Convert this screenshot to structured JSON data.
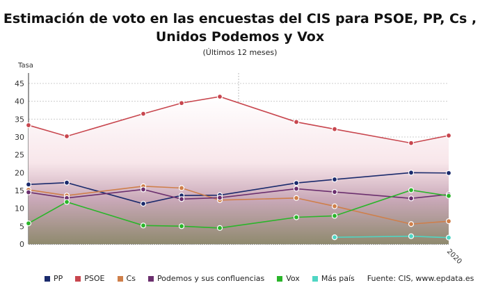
{
  "chart_data": {
    "type": "line",
    "title": "Estimación de voto en las encuestas del CIS para PSOE, PP, Cs , Unidos Podemos y Vox",
    "title_line1": "Estimación de voto en las encuestas del CIS para PSOE, PP, Cs ,",
    "title_line2": "Unidos Podemos y Vox",
    "subtitle": "(Últimos 12 meses)",
    "ylabel": "Tasa",
    "ylim": [
      0,
      45
    ],
    "yticks": [
      0,
      5,
      10,
      15,
      20,
      25,
      30,
      35,
      40,
      45
    ],
    "x_tick_labels": [
      "2020"
    ],
    "grid": true,
    "legend_position": "bottom",
    "source": "Fuente: CIS, www.epdata.es",
    "series": [
      {
        "name": "PP",
        "color": "#1a2a6c",
        "values": [
          16.7,
          17.2,
          11.3,
          13.6,
          13.7,
          17.1,
          18.1,
          20.0,
          19.9
        ]
      },
      {
        "name": "PSOE",
        "color": "#c8464e",
        "values": [
          33.3,
          30.2,
          36.5,
          39.5,
          41.3,
          34.2,
          32.2,
          28.3,
          30.4
        ]
      },
      {
        "name": "Cs",
        "color": "#cf7f4a",
        "values": [
          15.2,
          13.6,
          16.2,
          15.7,
          12.3,
          12.9,
          10.6,
          5.6,
          6.4
        ]
      },
      {
        "name": "Podemos y sus confluencias",
        "color": "#6b2f6e",
        "values": [
          14.5,
          12.9,
          15.3,
          12.6,
          13.0,
          15.5,
          14.6,
          12.8,
          13.9
        ]
      },
      {
        "name": "Vox",
        "color": "#2ab52a",
        "values": [
          5.8,
          11.8,
          5.2,
          5.0,
          4.5,
          7.5,
          7.9,
          15.1,
          13.5
        ]
      },
      {
        "name": "Más país",
        "color": "#4fd6c4",
        "values": [
          null,
          null,
          null,
          null,
          null,
          null,
          1.9,
          2.2,
          1.8
        ]
      }
    ]
  }
}
